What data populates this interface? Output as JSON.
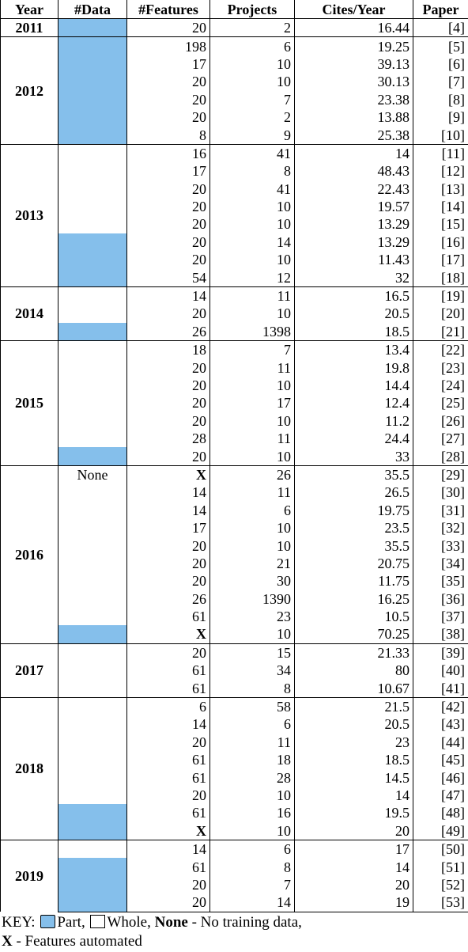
{
  "header": [
    "Year",
    "#Data",
    "#Features",
    "Projects",
    "Cites/Year",
    "Paper"
  ],
  "groups": [
    {
      "year": "2011",
      "rows": [
        {
          "data": "Part",
          "features": 20,
          "projects": 2,
          "cites": 16.44,
          "paper": "[4]"
        }
      ]
    },
    {
      "year": "2012",
      "rows": [
        {
          "data": "Part",
          "features": 198,
          "projects": 6,
          "cites": 19.25,
          "paper": "[5]"
        },
        {
          "data": "Part",
          "features": 17,
          "projects": 10,
          "cites": 39.13,
          "paper": "[6]"
        },
        {
          "data": "Part",
          "features": 20,
          "projects": 10,
          "cites": 30.13,
          "paper": "[7]"
        },
        {
          "data": "Part",
          "features": 20,
          "projects": 7,
          "cites": 23.38,
          "paper": "[8]"
        },
        {
          "data": "Part",
          "features": 20,
          "projects": 2,
          "cites": 13.88,
          "paper": "[9]"
        },
        {
          "data": "Part",
          "features": 8,
          "projects": 9,
          "cites": 25.38,
          "paper": "[10]"
        }
      ]
    },
    {
      "year": "2013",
      "rows": [
        {
          "data": "Whole",
          "features": 16,
          "projects": 41,
          "cites": 14,
          "paper": "[11]"
        },
        {
          "data": "Whole",
          "features": 17,
          "projects": 8,
          "cites": 48.43,
          "paper": "[12]"
        },
        {
          "data": "Whole",
          "features": 20,
          "projects": 41,
          "cites": 22.43,
          "paper": "[13]"
        },
        {
          "data": "Whole",
          "features": 20,
          "projects": 10,
          "cites": 19.57,
          "paper": "[14]"
        },
        {
          "data": "Whole",
          "features": 20,
          "projects": 10,
          "cites": 13.29,
          "paper": "[15]"
        },
        {
          "data": "Part",
          "features": 20,
          "projects": 14,
          "cites": 13.29,
          "paper": "[16]"
        },
        {
          "data": "Part",
          "features": 20,
          "projects": 10,
          "cites": 11.43,
          "paper": "[17]"
        },
        {
          "data": "Part",
          "features": 54,
          "projects": 12,
          "cites": 32,
          "paper": "[18]"
        }
      ]
    },
    {
      "year": "2014",
      "rows": [
        {
          "data": "Whole",
          "features": 14,
          "projects": 11,
          "cites": 16.5,
          "paper": "[19]"
        },
        {
          "data": "Whole",
          "features": 20,
          "projects": 10,
          "cites": 20.5,
          "paper": "[20]"
        },
        {
          "data": "Part",
          "features": 26,
          "projects": 1398,
          "cites": 18.5,
          "paper": "[21]"
        }
      ]
    },
    {
      "year": "2015",
      "rows": [
        {
          "data": "Whole",
          "features": 18,
          "projects": 7,
          "cites": 13.4,
          "paper": "[22]"
        },
        {
          "data": "Whole",
          "features": 20,
          "projects": 11,
          "cites": 19.8,
          "paper": "[23]"
        },
        {
          "data": "Whole",
          "features": 20,
          "projects": 10,
          "cites": 14.4,
          "paper": "[24]"
        },
        {
          "data": "Whole",
          "features": 20,
          "projects": 17,
          "cites": 12.4,
          "paper": "[25]"
        },
        {
          "data": "Whole",
          "features": 20,
          "projects": 10,
          "cites": 11.2,
          "paper": "[26]"
        },
        {
          "data": "Whole",
          "features": 28,
          "projects": 11,
          "cites": 24.4,
          "paper": "[27]"
        },
        {
          "data": "Part",
          "features": 20,
          "projects": 10,
          "cites": 33,
          "paper": "[28]"
        }
      ]
    },
    {
      "year": "2016",
      "rows": [
        {
          "data": "None",
          "features": "X",
          "projects": 26,
          "cites": 35.5,
          "paper": "[29]"
        },
        {
          "data": "Whole",
          "features": 14,
          "projects": 11,
          "cites": 26.5,
          "paper": "[30]"
        },
        {
          "data": "Whole",
          "features": 14,
          "projects": 6,
          "cites": 19.75,
          "paper": "[31]"
        },
        {
          "data": "Whole",
          "features": 17,
          "projects": 10,
          "cites": 23.5,
          "paper": "[32]"
        },
        {
          "data": "Whole",
          "features": 20,
          "projects": 10,
          "cites": 35.5,
          "paper": "[33]"
        },
        {
          "data": "Whole",
          "features": 20,
          "projects": 21,
          "cites": 20.75,
          "paper": "[34]"
        },
        {
          "data": "Whole",
          "features": 20,
          "projects": 30,
          "cites": 11.75,
          "paper": "[35]"
        },
        {
          "data": "Whole",
          "features": 26,
          "projects": 1390,
          "cites": 16.25,
          "paper": "[36]"
        },
        {
          "data": "Whole",
          "features": 61,
          "projects": 23,
          "cites": 10.5,
          "paper": "[37]"
        },
        {
          "data": "Part",
          "features": "X",
          "projects": 10,
          "cites": 70.25,
          "paper": "[38]"
        }
      ]
    },
    {
      "year": "2017",
      "rows": [
        {
          "data": "Whole",
          "features": 20,
          "projects": 15,
          "cites": 21.33,
          "paper": "[39]"
        },
        {
          "data": "Whole",
          "features": 61,
          "projects": 34,
          "cites": 80,
          "paper": "[40]"
        },
        {
          "data": "Whole",
          "features": 61,
          "projects": 8,
          "cites": 10.67,
          "paper": "[41]"
        }
      ]
    },
    {
      "year": "2018",
      "rows": [
        {
          "data": "Whole",
          "features": 6,
          "projects": 58,
          "cites": 21.5,
          "paper": "[42]"
        },
        {
          "data": "Whole",
          "features": 14,
          "projects": 6,
          "cites": 20.5,
          "paper": "[43]"
        },
        {
          "data": "Whole",
          "features": 20,
          "projects": 11,
          "cites": 23,
          "paper": "[44]"
        },
        {
          "data": "Whole",
          "features": 61,
          "projects": 18,
          "cites": 18.5,
          "paper": "[45]"
        },
        {
          "data": "Whole",
          "features": 61,
          "projects": 28,
          "cites": 14.5,
          "paper": "[46]"
        },
        {
          "data": "Whole",
          "features": 20,
          "projects": 10,
          "cites": 14,
          "paper": "[47]"
        },
        {
          "data": "Part",
          "features": 61,
          "projects": 16,
          "cites": 19.5,
          "paper": "[48]"
        },
        {
          "data": "Part",
          "features": "X",
          "projects": 10,
          "cites": 20,
          "paper": "[49]"
        }
      ]
    },
    {
      "year": "2019",
      "rows": [
        {
          "data": "Whole",
          "features": 14,
          "projects": 6,
          "cites": 17,
          "paper": "[50]"
        },
        {
          "data": "Part",
          "features": 61,
          "projects": 8,
          "cites": 14,
          "paper": "[51]"
        },
        {
          "data": "Part",
          "features": 20,
          "projects": 7,
          "cites": 20,
          "paper": "[52]"
        },
        {
          "data": "Part",
          "features": 20,
          "projects": 14,
          "cites": 19,
          "paper": "[53]"
        }
      ]
    }
  ],
  "key": {
    "label": "KEY:",
    "part": "Part,",
    "whole": "Whole,",
    "none": "None",
    "none_text": "- No training data,",
    "x": "X",
    "x_text": "- Features automated"
  }
}
